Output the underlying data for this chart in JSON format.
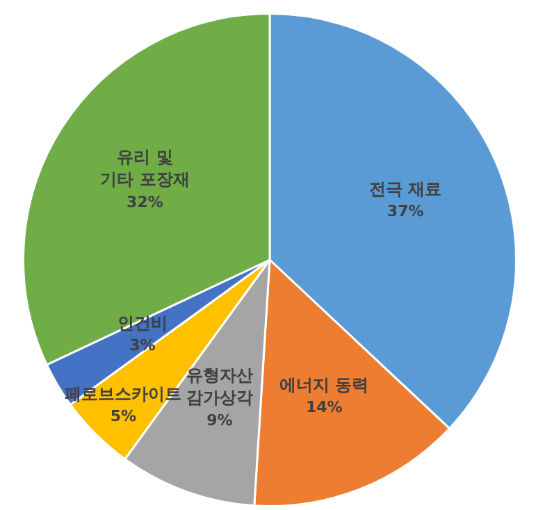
{
  "chart_data": {
    "type": "pie",
    "categories": [
      "전극 재료",
      "에너지 동력",
      "유형자산\n감가상각",
      "페로브스카이트",
      "인건비",
      "유리 및\n기타 포장재"
    ],
    "values": [
      37,
      14,
      9,
      5,
      3,
      32
    ],
    "colors": [
      "#5b9bd5",
      "#ed7d31",
      "#a5a5a5",
      "#ffc000",
      "#4472c4",
      "#70ad47"
    ],
    "value_labels": [
      "37%",
      "14%",
      "9%",
      "5%",
      "3%",
      "32%"
    ],
    "legend": false
  }
}
